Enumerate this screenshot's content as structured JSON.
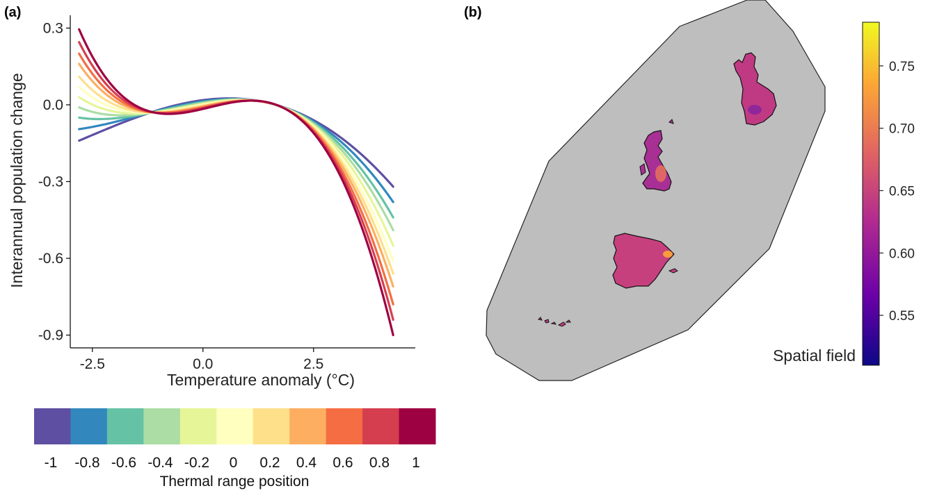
{
  "chart_data": [
    {
      "type": "line",
      "panel_label": "(a)",
      "xlabel": "Temperature anomaly (°C)",
      "ylabel": "Interannual population change",
      "xlim": [
        -3.0,
        4.8
      ],
      "ylim": [
        -0.95,
        0.35
      ],
      "x_ticks": [
        -2.5,
        0.0,
        2.5
      ],
      "x_tick_labels": [
        "-2.5",
        "0.0",
        "2.5"
      ],
      "y_ticks": [
        0.3,
        0.0,
        -0.3,
        -0.6,
        -0.9
      ],
      "y_tick_labels": [
        "0.3",
        "0.0",
        "-0.3",
        "-0.6",
        "-0.9"
      ],
      "x_range": [
        -2.8,
        4.3
      ],
      "grid": false,
      "legend": {
        "title": "Thermal range position",
        "placement": "bottom",
        "labels": [
          "-1",
          "-0.8",
          "-0.6",
          "-0.4",
          "-0.2",
          "0",
          "0.2",
          "0.4",
          "0.6",
          "0.8",
          "1"
        ],
        "colors": [
          "#5E4FA2",
          "#3288BD",
          "#66C2A5",
          "#ABDDA4",
          "#E6F598",
          "#FFFFBF",
          "#FEE08B",
          "#FDAE61",
          "#F46D43",
          "#D53E4F",
          "#9E0142"
        ]
      },
      "series": [
        {
          "x": [
            -2.8,
            -1.0,
            0.5,
            2.5,
            4.3
          ],
          "y": [
            -0.14,
            -0.02,
            0.025,
            -0.06,
            -0.32
          ]
        },
        {
          "x": [
            -2.8,
            -1.0,
            0.5,
            2.5,
            4.3
          ],
          "y": [
            -0.095,
            -0.022,
            0.022,
            -0.065,
            -0.38
          ]
        },
        {
          "x": [
            -2.8,
            -1.0,
            0.5,
            2.5,
            4.3
          ],
          "y": [
            -0.05,
            -0.024,
            0.02,
            -0.07,
            -0.44
          ]
        },
        {
          "x": [
            -2.8,
            -1.0,
            0.5,
            2.5,
            4.3
          ],
          "y": [
            -0.01,
            -0.026,
            0.018,
            -0.075,
            -0.49
          ]
        },
        {
          "x": [
            -2.8,
            -1.0,
            0.5,
            2.5,
            4.3
          ],
          "y": [
            0.03,
            -0.027,
            0.016,
            -0.08,
            -0.55
          ]
        },
        {
          "x": [
            -2.8,
            -1.0,
            0.5,
            2.5,
            4.3
          ],
          "y": [
            0.07,
            -0.028,
            0.014,
            -0.085,
            -0.61
          ]
        },
        {
          "x": [
            -2.8,
            -1.0,
            0.5,
            2.5,
            4.3
          ],
          "y": [
            0.11,
            -0.029,
            0.012,
            -0.09,
            -0.66
          ]
        },
        {
          "x": [
            -2.8,
            -1.0,
            0.5,
            2.5,
            4.3
          ],
          "y": [
            0.16,
            -0.03,
            0.01,
            -0.095,
            -0.71
          ]
        },
        {
          "x": [
            -2.8,
            -1.0,
            0.5,
            2.5,
            4.3
          ],
          "y": [
            0.2,
            -0.031,
            0.008,
            -0.1,
            -0.78
          ]
        },
        {
          "x": [
            -2.8,
            -1.0,
            0.5,
            2.5,
            4.3
          ],
          "y": [
            0.245,
            -0.032,
            0.006,
            -0.105,
            -0.84
          ]
        },
        {
          "x": [
            -2.8,
            -1.0,
            0.5,
            2.5,
            4.3
          ],
          "y": [
            0.295,
            -0.033,
            0.004,
            -0.11,
            -0.9
          ]
        }
      ]
    },
    {
      "type": "heatmap",
      "panel_label": "(b)",
      "colorbar": {
        "title": "Spatial field",
        "placement": "right",
        "ticks": [
          0.75,
          0.7,
          0.65,
          0.6,
          0.55
        ],
        "tick_labels": [
          "0.75",
          "0.70",
          "0.65",
          "0.60",
          "0.55"
        ],
        "range": [
          0.51,
          0.785
        ],
        "colors": [
          "#0D0887",
          "#6A00A8",
          "#B12A90",
          "#E16462",
          "#FCA636",
          "#F0F921"
        ]
      },
      "map": {
        "mesh_color": "#BEBEBE",
        "regions": [
          {
            "name": "Fennoscandia",
            "color": "#C03A83"
          },
          {
            "name": "Great Britain",
            "color": "#A83095"
          },
          {
            "name": "Iberian Peninsula",
            "color": "#C6407E"
          },
          {
            "name": "Canary Islands",
            "color": "#C03A83"
          }
        ]
      }
    }
  ]
}
